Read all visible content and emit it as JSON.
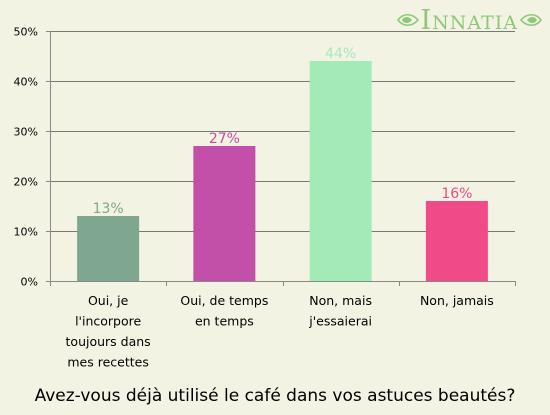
{
  "logo": {
    "text": "Innatia"
  },
  "colors": {
    "background": "#f3f3e3",
    "axis": "#888888",
    "gridline": "#000000"
  },
  "chart_data": {
    "type": "bar",
    "title": "Avez-vous déjà utilisé le café dans vos astuces beautés?",
    "categories": [
      [
        "Oui, je",
        "l'incorpore",
        "toujours dans",
        "mes recettes"
      ],
      [
        "Oui, de temps",
        "en temps"
      ],
      [
        "Non, mais",
        "j'essaierai"
      ],
      [
        "Non, jamais"
      ]
    ],
    "values": [
      13,
      27,
      44,
      16
    ],
    "value_labels": [
      "13%",
      "27%",
      "44%",
      "16%"
    ],
    "bar_colors": [
      "#7fa68e",
      "#c24fa8",
      "#a2ebb7",
      "#f04a88"
    ],
    "label_colors": [
      "#7fa68e",
      "#c24fa8",
      "#a2ebb7",
      "#f04a88"
    ],
    "ylim": [
      0,
      50
    ],
    "yticks": [
      0,
      10,
      20,
      30,
      40,
      50
    ],
    "ytick_labels": [
      "0%",
      "10%",
      "20%",
      "30%",
      "40%",
      "50%"
    ],
    "grid": true
  }
}
